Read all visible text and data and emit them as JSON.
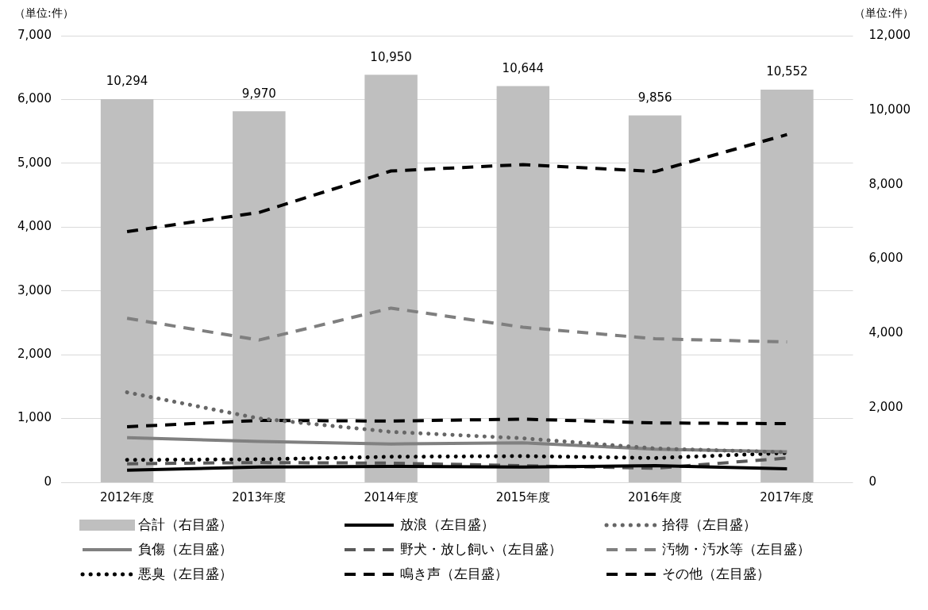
{
  "chart_data": {
    "type": "line",
    "ylabel": "（単位:件）",
    "y2label": "（単位:件）",
    "categories": [
      "2012年度",
      "2013年度",
      "2014年度",
      "2015年度",
      "2016年度",
      "2017年度"
    ],
    "series": [
      {
        "name": "合計（右目盛）",
        "type": "bar",
        "axis": "y2",
        "color": "#bfbfbf",
        "values": [
          10294,
          9970,
          10950,
          10644,
          9856,
          10552
        ],
        "value_labels": [
          "10,294",
          "9,970",
          "10,950",
          "10,644",
          "9,856",
          "10,552"
        ]
      },
      {
        "name": "放浪（左目盛）",
        "color": "#000000",
        "line_style": "solid",
        "values": [
          190,
          240,
          250,
          240,
          260,
          210
        ]
      },
      {
        "name": "拾得（左目盛）",
        "color": "#666666",
        "line_style": "dotted",
        "values": [
          1410,
          1000,
          790,
          690,
          530,
          470
        ]
      },
      {
        "name": "負傷（左目盛）",
        "color": "#808080",
        "line_style": "solid",
        "values": [
          700,
          640,
          600,
          620,
          520,
          480
        ]
      },
      {
        "name": "野犬・放し飼い（左目盛）",
        "color": "#595959",
        "line_style": "dashed",
        "values": [
          290,
          310,
          300,
          260,
          220,
          380
        ]
      },
      {
        "name": "汚物・汚水等（左目盛）",
        "color": "#7f7f7f",
        "line_style": "dashed",
        "values": [
          2570,
          2230,
          2730,
          2430,
          2250,
          2200
        ]
      },
      {
        "name": "悪臭（左目盛）",
        "color": "#000000",
        "line_style": "dotted",
        "values": [
          350,
          360,
          400,
          410,
          380,
          460
        ]
      },
      {
        "name": "鳴き声（左目盛）",
        "color": "#000000",
        "line_style": "dashed",
        "values": [
          870,
          970,
          960,
          990,
          930,
          920
        ]
      },
      {
        "name": "その他（左目盛）",
        "color": "#000000",
        "line_style": "dashed",
        "values": [
          3930,
          4230,
          4880,
          4980,
          4870,
          5450
        ]
      }
    ],
    "ylim": [
      0,
      7000
    ],
    "yticks": [
      {
        "value": 0,
        "label": "0"
      },
      {
        "value": 1000,
        "label": "1,000"
      },
      {
        "value": 2000,
        "label": "2,000"
      },
      {
        "value": 3000,
        "label": "3,000"
      },
      {
        "value": 4000,
        "label": "4,000"
      },
      {
        "value": 5000,
        "label": "5,000"
      },
      {
        "value": 6000,
        "label": "6,000"
      },
      {
        "value": 7000,
        "label": "7,000"
      }
    ],
    "y2lim": [
      0,
      12000
    ],
    "y2ticks": [
      {
        "value": 0,
        "label": "0"
      },
      {
        "value": 2000,
        "label": "2,000"
      },
      {
        "value": 4000,
        "label": "4,000"
      },
      {
        "value": 6000,
        "label": "6,000"
      },
      {
        "value": 8000,
        "label": "8,000"
      },
      {
        "value": 10000,
        "label": "10,000"
      },
      {
        "value": 12000,
        "label": "12,000"
      }
    ],
    "grid": "y",
    "legend": "bottom"
  }
}
